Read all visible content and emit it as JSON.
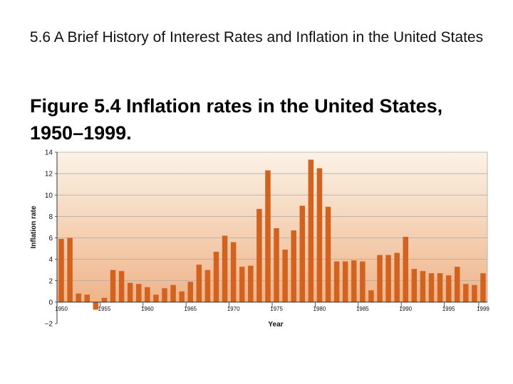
{
  "slide": {
    "title": "5.6  A Brief History of Interest Rates and Inflation in the United States",
    "figure_title": "Figure 5.4  Inflation rates in the United States, 1950–1999."
  },
  "colors": {
    "bar": "#d2621e",
    "grid": "#a8a8a8",
    "plot_top": "#fbf2e6",
    "plot_bottom": "#efb489"
  },
  "chart_data": {
    "type": "bar",
    "xlabel": "Year",
    "ylabel": "Inflation rate",
    "ylim": [
      -2,
      14
    ],
    "yticks": [
      -2,
      0,
      2,
      4,
      6,
      8,
      10,
      12,
      14
    ],
    "grid": true,
    "legend": "none",
    "x_tick_labels": [
      "1950",
      "1955",
      "1960",
      "1965",
      "1970",
      "1975",
      "1980",
      "1985",
      "1990",
      "1995",
      "1999"
    ],
    "categories": [
      1950,
      1951,
      1952,
      1953,
      1954,
      1955,
      1956,
      1957,
      1958,
      1959,
      1960,
      1961,
      1962,
      1963,
      1964,
      1965,
      1966,
      1967,
      1968,
      1969,
      1970,
      1971,
      1972,
      1973,
      1974,
      1975,
      1976,
      1977,
      1978,
      1979,
      1980,
      1981,
      1982,
      1983,
      1984,
      1985,
      1986,
      1987,
      1988,
      1989,
      1990,
      1991,
      1992,
      1993,
      1994,
      1995,
      1996,
      1997,
      1998,
      1999
    ],
    "values": [
      5.9,
      6.0,
      0.8,
      0.7,
      -0.7,
      0.4,
      3.0,
      2.9,
      1.8,
      1.7,
      1.4,
      0.7,
      1.3,
      1.6,
      1.0,
      1.9,
      3.5,
      3.0,
      4.7,
      6.2,
      5.6,
      3.3,
      3.4,
      8.7,
      12.3,
      6.9,
      4.9,
      6.7,
      9.0,
      13.3,
      12.5,
      8.9,
      3.8,
      3.8,
      3.9,
      3.8,
      1.1,
      4.4,
      4.4,
      4.6,
      6.1,
      3.1,
      2.9,
      2.7,
      2.7,
      2.5,
      3.3,
      1.7,
      1.6,
      2.7
    ]
  }
}
